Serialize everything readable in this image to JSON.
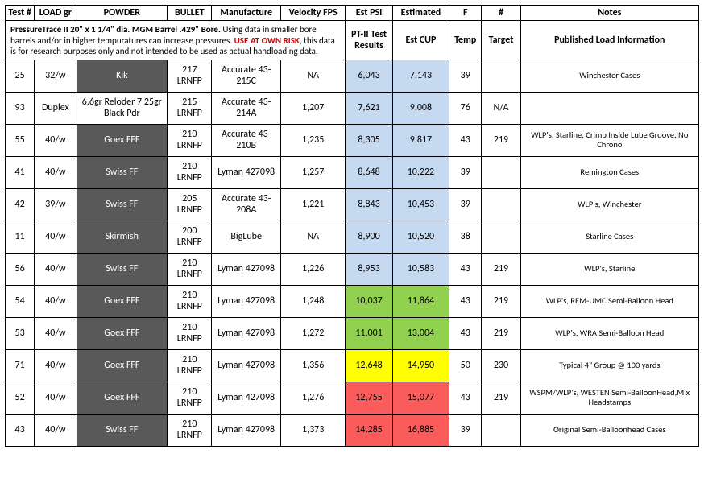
{
  "headers": {
    "test": "Test #",
    "load": "LOAD gr",
    "powder": "POWDER",
    "bullet": "BULLET",
    "manufacture": "Manufacture",
    "velocity": "Velocity FPS",
    "estpsi": "Est PSI",
    "estimated": "Estimated",
    "f": "F",
    "num": "#",
    "notes": "Notes"
  },
  "subheaders": {
    "desc_pre": "PressureTrace II    20\" x 1 1/4\" dia. MGM Barrel .429\" Bore.",
    "desc_mid": " Using data in smaller bore barrels and/or in higher tempuratures can increase pressures. ",
    "desc_risk": "USE AT OWN RISK",
    "desc_post": ", this data is for research purposes only and not intended to be used as actual handloading data.",
    "ptii": "PT-II Test Results",
    "estcup": "Est CUP",
    "temp": "Temp",
    "target": "Target",
    "published": "Published Load Information"
  },
  "colwidths": {
    "test": 36,
    "load": 52,
    "powder": 112,
    "bullet": 55,
    "manufacture": 85,
    "velocity": 80,
    "estpsi": 58,
    "estimated": 70,
    "f": 40,
    "num": 48,
    "notes": 220
  },
  "rows": [
    {
      "test": "25",
      "load": "32/w",
      "powder": "Kik",
      "powder_dark": true,
      "bullet": "217 LRNFP",
      "manufacture": "Accurate 43-215C",
      "velocity": "NA",
      "psi": "6,043",
      "psi_bg": "blue-bg",
      "cup": "7,143",
      "cup_bg": "blue-bg",
      "temp": "39",
      "target": "",
      "notes": "Winchester Cases"
    },
    {
      "test": "93",
      "load": "Duplex",
      "powder": "6.6gr Reloder 7 25gr Black Pdr",
      "powder_dark": false,
      "bullet": "215 LRNFP",
      "manufacture": "Accurate 43-214A",
      "velocity": "1,207",
      "psi": "7,621",
      "psi_bg": "blue-bg",
      "cup": "9,008",
      "cup_bg": "blue-bg",
      "temp": "76",
      "target": "N/A",
      "notes": ""
    },
    {
      "test": "55",
      "load": "40/w",
      "powder": "Goex FFF",
      "powder_dark": true,
      "bullet": "210 LRNFP",
      "manufacture": "Accurate 43-210B",
      "velocity": "1,235",
      "psi": "8,305",
      "psi_bg": "blue-bg",
      "cup": "9,817",
      "cup_bg": "blue-bg",
      "temp": "43",
      "target": "219",
      "notes": "WLP's, Starline, Crimp Inside Lube Groove, No Chrono"
    },
    {
      "test": "41",
      "load": "40/w",
      "powder": "Swiss FF",
      "powder_dark": true,
      "bullet": "210 LRNFP",
      "manufacture": "Lyman 427098",
      "velocity": "1,257",
      "psi": "8,648",
      "psi_bg": "blue-bg",
      "cup": "10,222",
      "cup_bg": "blue-bg",
      "temp": "39",
      "target": "",
      "notes": "Remington Cases"
    },
    {
      "test": "42",
      "load": "39/w",
      "powder": "Swiss FF",
      "powder_dark": true,
      "bullet": "205 LRNFP",
      "manufacture": "Accurate 43-208A",
      "velocity": "1,221",
      "psi": "8,843",
      "psi_bg": "blue-bg",
      "cup": "10,453",
      "cup_bg": "blue-bg",
      "temp": "39",
      "target": "",
      "notes": "WLP's, Winchester"
    },
    {
      "test": "11",
      "load": "40/w",
      "powder": "Skirmish",
      "powder_dark": true,
      "bullet": "200 LRNFP",
      "manufacture": "BigLube",
      "velocity": "NA",
      "psi": "8,900",
      "psi_bg": "blue-bg",
      "cup": "10,520",
      "cup_bg": "blue-bg",
      "temp": "38",
      "target": "",
      "notes": "Starline Cases"
    },
    {
      "test": "56",
      "load": "40/w",
      "powder": "Swiss FF",
      "powder_dark": true,
      "bullet": "210 LRNFP",
      "manufacture": "Lyman 427098",
      "velocity": "1,226",
      "psi": "8,953",
      "psi_bg": "blue-bg",
      "cup": "10,583",
      "cup_bg": "blue-bg",
      "temp": "43",
      "target": "219",
      "notes": "WLP's, Starline"
    },
    {
      "test": "54",
      "load": "40/w",
      "powder": "Goex FFF",
      "powder_dark": true,
      "bullet": "210 LRNFP",
      "manufacture": "Lyman 427098",
      "velocity": "1,248",
      "psi": "10,037",
      "psi_bg": "green-bg",
      "cup": "11,864",
      "cup_bg": "green-bg",
      "temp": "43",
      "target": "219",
      "notes": "WLP's, REM-UMC Semi-Balloon Head"
    },
    {
      "test": "53",
      "load": "40/w",
      "powder": "Goex FFF",
      "powder_dark": true,
      "bullet": "210 LRNFP",
      "manufacture": "Lyman 427098",
      "velocity": "1,272",
      "psi": "11,001",
      "psi_bg": "green-bg",
      "cup": "13,004",
      "cup_bg": "green-bg",
      "temp": "43",
      "target": "219",
      "notes": "WLP's, WRA Semi-Balloon Head"
    },
    {
      "test": "71",
      "load": "40/w",
      "powder": "Goex FFF",
      "powder_dark": true,
      "bullet": "210 LRNFP",
      "manufacture": "Lyman 427098",
      "velocity": "1,356",
      "psi": "12,648",
      "psi_bg": "yellow-bg",
      "cup": "14,950",
      "cup_bg": "yellow-bg",
      "temp": "50",
      "target": "230",
      "notes": "Typical 4\" Group @ 100 yards"
    },
    {
      "test": "52",
      "load": "40/w",
      "powder": "Goex FFF",
      "powder_dark": true,
      "bullet": "210 LRNFP",
      "manufacture": "Lyman 427098",
      "velocity": "1,276",
      "psi": "12,755",
      "psi_bg": "red-bg",
      "cup": "15,077",
      "cup_bg": "red-bg",
      "temp": "43",
      "target": "219",
      "notes": "WSPM/WLP's, WESTEN Semi-BalloonHead,Mix Headstamps"
    },
    {
      "test": "43",
      "load": "40/w",
      "powder": "Swiss FF",
      "powder_dark": true,
      "bullet": "210 LRNFP",
      "manufacture": "Lyman 427098",
      "velocity": "1,373",
      "psi": "14,285",
      "psi_bg": "red-bg",
      "cup": "16,885",
      "cup_bg": "red-bg",
      "temp": "39",
      "target": "",
      "notes": "Original Semi-Balloonhead Cases"
    }
  ]
}
